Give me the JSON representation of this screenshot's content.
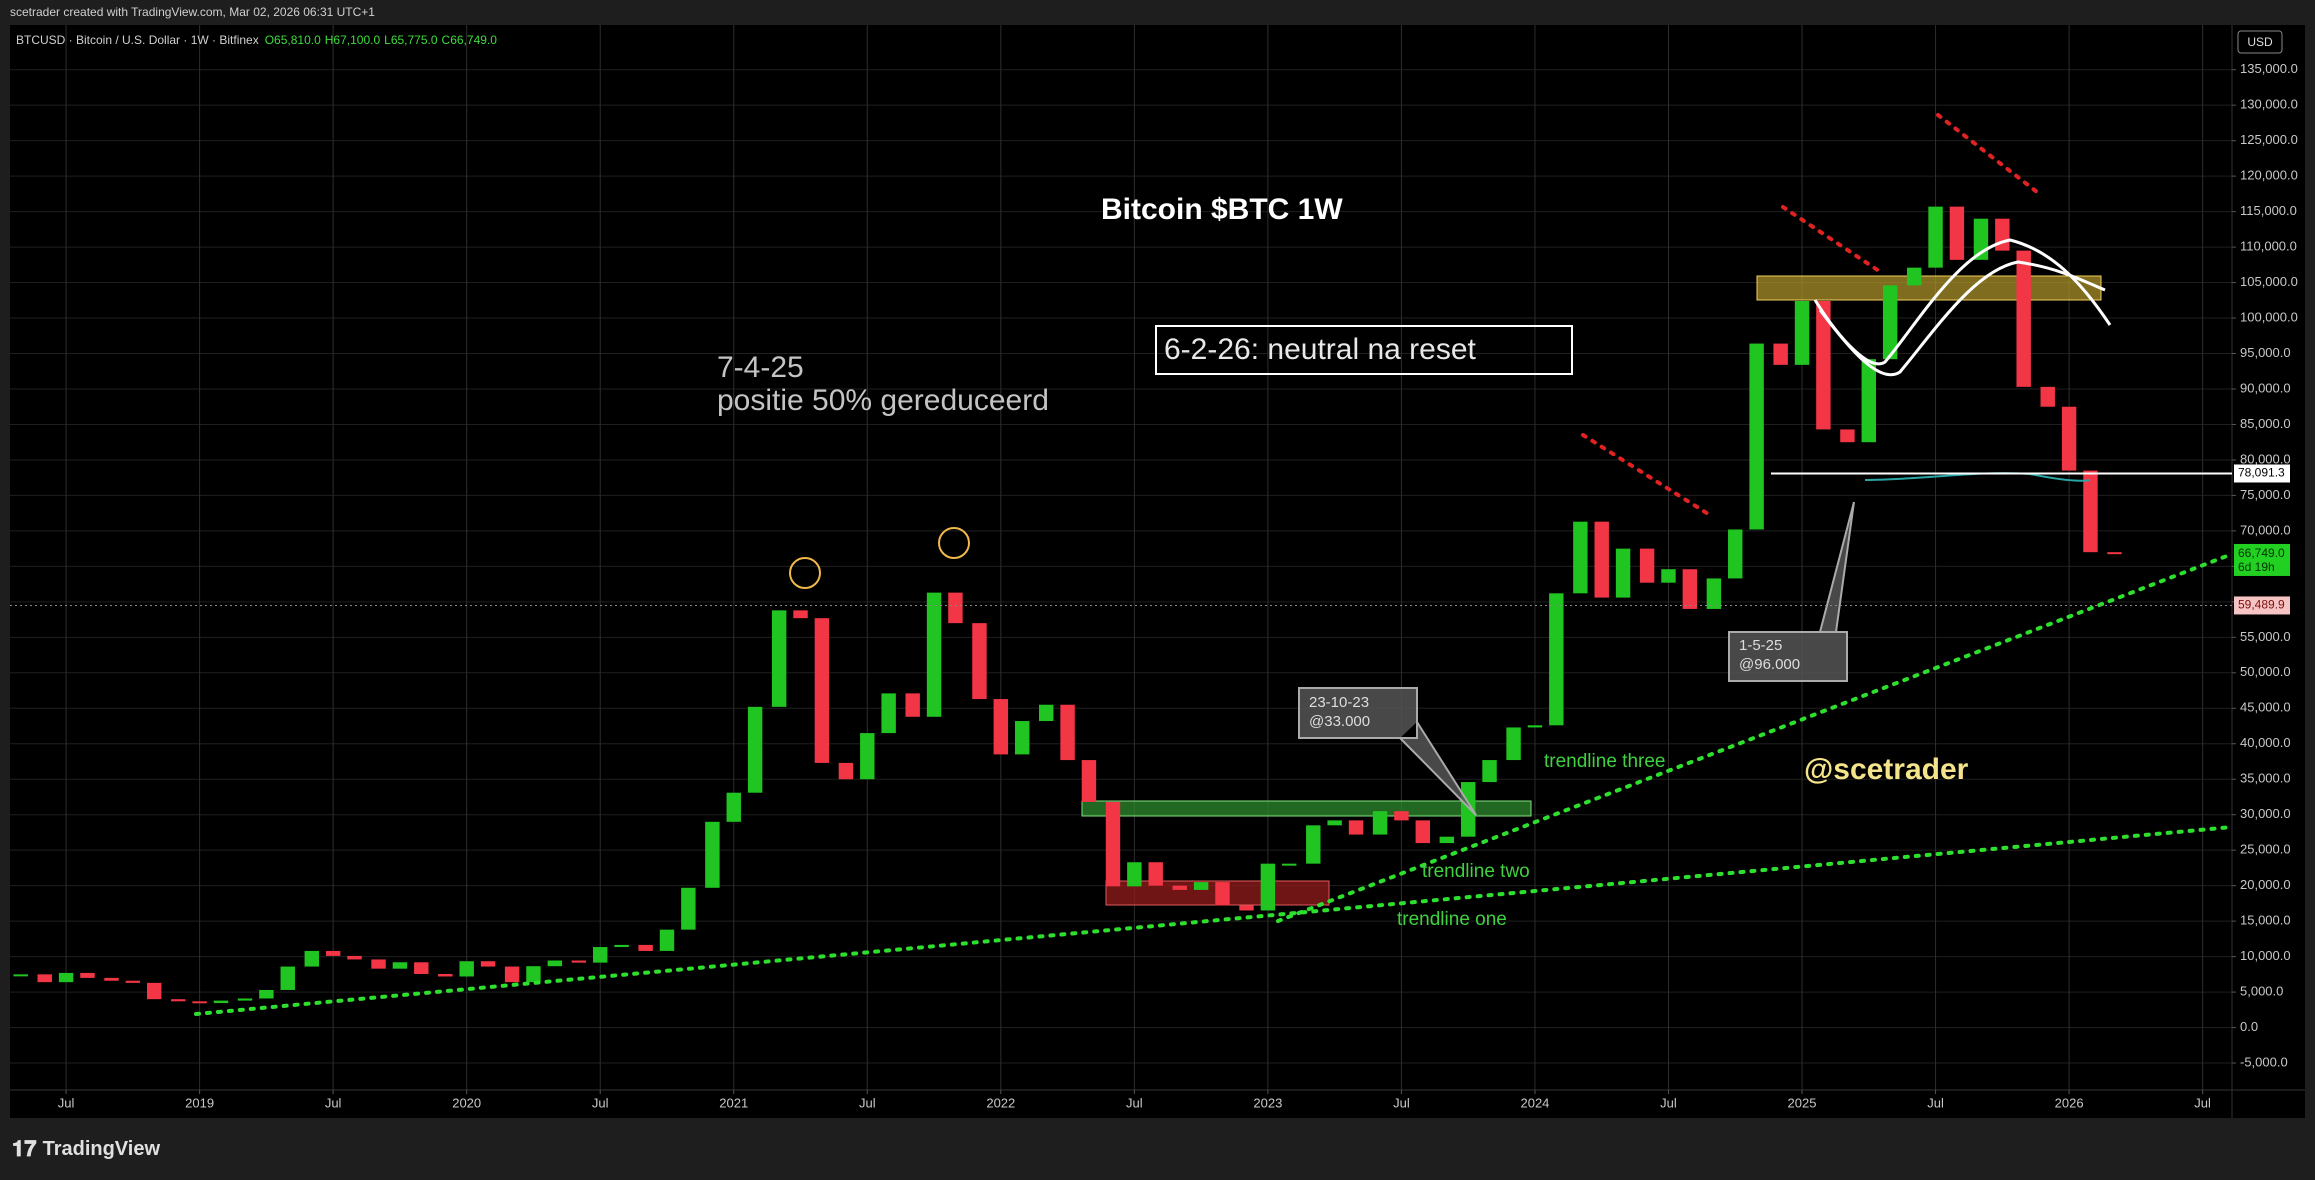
{
  "header": {
    "credit": "scetrader created with TradingView.com, Mar 02, 2026 06:31 UTC+1",
    "symbol": "BTCUSD · Bitcoin / U.S. Dollar · 1W · Bitfinex",
    "ohlc": [
      "O65,810.0",
      "H67,100.0",
      "L65,775.0",
      "C66,749.0"
    ],
    "currency": "USD"
  },
  "chart_data": {
    "type": "candlestick",
    "up_color": "#21c521",
    "down_color": "#f23645",
    "x": [
      2018.33,
      2018.42,
      2018.5,
      2018.58,
      2018.67,
      2018.75,
      2018.83,
      2018.92,
      2019.0,
      2019.08,
      2019.17,
      2019.25,
      2019.33,
      2019.42,
      2019.5,
      2019.58,
      2019.67,
      2019.75,
      2019.83,
      2019.92,
      2020.0,
      2020.08,
      2020.17,
      2020.25,
      2020.33,
      2020.42,
      2020.5,
      2020.58,
      2020.67,
      2020.75,
      2020.83,
      2020.92,
      2021.0,
      2021.08,
      2021.17,
      2021.25,
      2021.33,
      2021.42,
      2021.5,
      2021.58,
      2021.67,
      2021.75,
      2021.83,
      2021.92,
      2022.0,
      2022.08,
      2022.17,
      2022.25,
      2022.33,
      2022.42,
      2022.5,
      2022.58,
      2022.67,
      2022.75,
      2022.83,
      2022.92,
      2023.0,
      2023.08,
      2023.17,
      2023.25,
      2023.33,
      2023.42,
      2023.5,
      2023.58,
      2023.67,
      2023.75,
      2023.83,
      2023.92,
      2024.0,
      2024.08,
      2024.17,
      2024.25,
      2024.33,
      2024.42,
      2024.5,
      2024.58,
      2024.67,
      2024.75,
      2024.83,
      2024.92,
      2025.0,
      2025.08,
      2025.17,
      2025.25,
      2025.33,
      2025.42,
      2025.5,
      2025.58,
      2025.67,
      2025.75,
      2025.83,
      2025.92,
      2026.0,
      2026.08,
      2026.17
    ],
    "values": [
      7500,
      6400,
      7700,
      7000,
      6600,
      6300,
      4000,
      3700,
      3450,
      3800,
      4100,
      5300,
      8600,
      10800,
      10100,
      9600,
      8300,
      9200,
      7550,
      7200,
      9350,
      8600,
      6400,
      8650,
      9450,
      9150,
      11350,
      11650,
      10800,
      13800,
      19700,
      29000,
      33100,
      45200,
      58800,
      57700,
      37300,
      35000,
      41500,
      47100,
      43800,
      61300,
      57000,
      46300,
      38500,
      43200,
      45500,
      37700,
      31800,
      19900,
      23300,
      20000,
      19400,
      20500,
      17200,
      16500,
      23100,
      23100,
      28500,
      29200,
      27200,
      30500,
      29200,
      26000,
      26900,
      34600,
      37700,
      42300,
      42600,
      61200,
      71300,
      60600,
      67500,
      62700,
      64600,
      59000,
      63300,
      70200,
      96400,
      93400,
      102400,
      84300,
      82500,
      94200,
      104600,
      107100,
      115700,
      108200,
      114000,
      109500,
      90300,
      87500,
      78500,
      67000,
      66749
    ],
    "xlim": [
      2018.29,
      2026.61
    ],
    "xticks": [
      {
        "value": 2018.5,
        "label": "Jul"
      },
      2019,
      {
        "value": 2019.5,
        "label": "Jul"
      },
      2020,
      {
        "value": 2020.5,
        "label": "Jul"
      },
      2021,
      {
        "value": 2021.5,
        "label": "Jul"
      },
      2022,
      {
        "value": 2022.5,
        "label": "Jul"
      },
      2023,
      {
        "value": 2023.5,
        "label": "Jul"
      },
      2024,
      {
        "value": 2024.5,
        "label": "Jul"
      },
      2025,
      {
        "value": 2025.5,
        "label": "Jul"
      },
      2026,
      {
        "value": 2026.5,
        "label": "Jul"
      }
    ],
    "ylim": [
      -8800,
      141300
    ],
    "yticks": [
      {
        "value": -5000,
        "label": "-5,000.0"
      },
      {
        "value": 0,
        "label": "0.0"
      },
      {
        "value": 5000,
        "label": "5,000.0"
      },
      {
        "value": 10000,
        "label": "10,000.0"
      },
      {
        "value": 15000,
        "label": "15,000.0"
      },
      {
        "value": 20000,
        "label": "20,000.0"
      },
      {
        "value": 25000,
        "label": "25,000.0"
      },
      {
        "value": 30000,
        "label": "30,000.0"
      },
      {
        "value": 35000,
        "label": "35,000.0"
      },
      {
        "value": 40000,
        "label": "40,000.0"
      },
      {
        "value": 45000,
        "label": "45,000.0"
      },
      {
        "value": 50000,
        "label": "50,000.0"
      },
      {
        "value": 55000,
        "label": "55,000.0"
      },
      {
        "value": 60000,
        "label": "60,000.0"
      },
      {
        "value": 65000,
        "label": "65,000.0"
      },
      {
        "value": 70000,
        "label": "70,000.0"
      },
      {
        "value": 75000,
        "label": "75,000.0"
      },
      {
        "value": 80000,
        "label": "80,000.0"
      },
      {
        "value": 85000,
        "label": "85,000.0"
      },
      {
        "value": 90000,
        "label": "90,000.0"
      },
      {
        "value": 95000,
        "label": "95,000.0"
      },
      {
        "value": 100000,
        "label": "100,000.0"
      },
      {
        "value": 105000,
        "label": "105,000.0"
      },
      {
        "value": 110000,
        "label": "110,000.0"
      },
      {
        "value": 115000,
        "label": "115,000.0"
      },
      {
        "value": 120000,
        "label": "120,000.0"
      },
      {
        "value": 125000,
        "label": "125,000.0"
      },
      {
        "value": 130000,
        "label": "130,000.0"
      },
      {
        "value": 135000,
        "label": "135,000.0"
      }
    ],
    "grid": true,
    "price_lines": [
      {
        "value": 78091.3,
        "label": "78,091.3"
      },
      {
        "value": 59489.9,
        "label": "59,489.9"
      }
    ],
    "last_price": {
      "value": 66749,
      "label": "66,749.0",
      "countdown": "6d 19h"
    },
    "annotations": {
      "title": "Bitcoin $BTC 1W",
      "status": "6-2-26: neutral na reset",
      "note_date": "7-4-25",
      "note_text": "positie 50% gereduceerd",
      "callout_1_date": "1-5-25",
      "callout_1_price": "@96.000",
      "callout_2_date": "23-10-23",
      "callout_2_price": "@33.000",
      "trendline_three": "trendline three",
      "trendline_two": "trendline two",
      "trendline_one": "trendline one",
      "handle": "@scetrader"
    }
  },
  "footer": {
    "brand": "TradingView"
  }
}
